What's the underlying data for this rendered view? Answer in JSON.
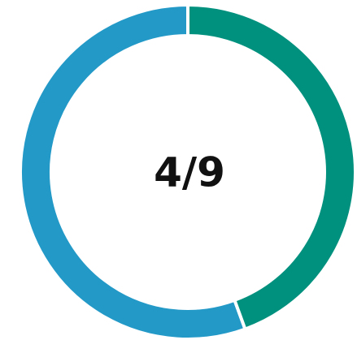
{
  "chart_data": {
    "type": "donut",
    "center_label": "4/9",
    "values": [
      4,
      5
    ],
    "colors": [
      "#00917e",
      "#2399c8"
    ]
  }
}
